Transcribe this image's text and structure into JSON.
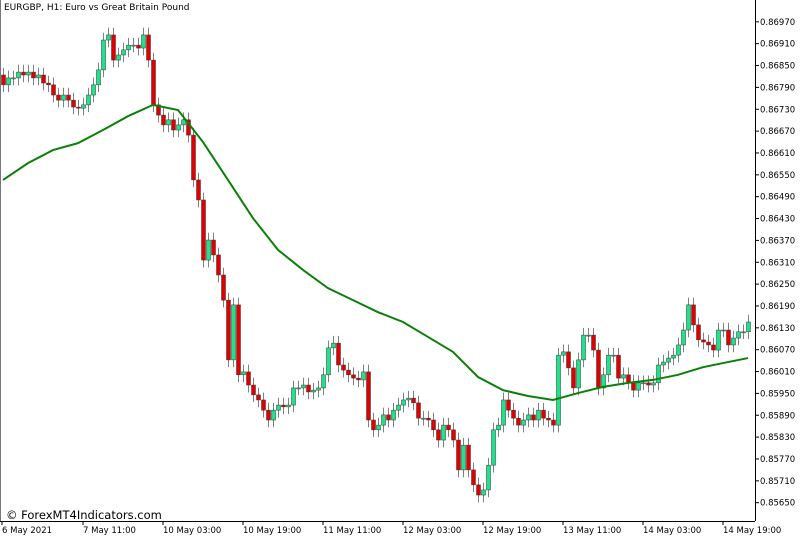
{
  "header": {
    "title": "EURGBP, H1:  Euro vs Great Britain Pound"
  },
  "watermark": "© ForexMT4Indicators.com",
  "colors": {
    "bull": "#1de38a",
    "bear": "#e00000",
    "wick": "#808080",
    "ma": "#0a800a",
    "axis": "#000000"
  },
  "chart_data": {
    "type": "candlestick",
    "symbol": "EURGBP",
    "timeframe": "H1",
    "ylim": [
      0.8562,
      0.86995
    ],
    "y_ticks": [
      0.8697,
      0.8691,
      0.8685,
      0.8679,
      0.8673,
      0.8667,
      0.8661,
      0.8655,
      0.8649,
      0.8643,
      0.8637,
      0.8631,
      0.8625,
      0.8619,
      0.8613,
      0.8607,
      0.8601,
      0.8595,
      0.8589,
      0.8583,
      0.8577,
      0.8571,
      0.8565
    ],
    "x_ticks": [
      {
        "bar": 0,
        "label": "6 May 2021"
      },
      {
        "bar": 16,
        "label": "7 May 11:00"
      },
      {
        "bar": 32,
        "label": "10 May 03:00"
      },
      {
        "bar": 48,
        "label": "10 May 19:00"
      },
      {
        "bar": 64,
        "label": "11 May 11:00"
      },
      {
        "bar": 80,
        "label": "12 May 03:00"
      },
      {
        "bar": 96,
        "label": "12 May 19:00"
      },
      {
        "bar": 112,
        "label": "13 May 11:00"
      },
      {
        "bar": 128,
        "label": "14 May 03:00"
      },
      {
        "bar": 144,
        "label": "14 May 19:00"
      }
    ],
    "candles_ohlc": [
      [
        0.86824,
        0.86844,
        0.86777,
        0.86797
      ],
      [
        0.86797,
        0.86836,
        0.86777,
        0.86816
      ],
      [
        0.86816,
        0.86836,
        0.86796,
        0.86816
      ],
      [
        0.86816,
        0.86852,
        0.86796,
        0.86832
      ],
      [
        0.86832,
        0.86852,
        0.86804,
        0.86824
      ],
      [
        0.86824,
        0.86852,
        0.86804,
        0.86832
      ],
      [
        0.86832,
        0.86852,
        0.86796,
        0.86816
      ],
      [
        0.86816,
        0.86844,
        0.86796,
        0.86824
      ],
      [
        0.86824,
        0.86844,
        0.86782,
        0.86802
      ],
      [
        0.86802,
        0.86822,
        0.86777,
        0.86797
      ],
      [
        0.86797,
        0.86817,
        0.86749,
        0.86769
      ],
      [
        0.86769,
        0.86789,
        0.86735,
        0.86755
      ],
      [
        0.86755,
        0.86789,
        0.86735,
        0.86769
      ],
      [
        0.86769,
        0.86789,
        0.86735,
        0.86755
      ],
      [
        0.86755,
        0.86775,
        0.86716,
        0.86736
      ],
      [
        0.86736,
        0.86756,
        0.86713,
        0.86733
      ],
      [
        0.86733,
        0.86762,
        0.86713,
        0.86742
      ],
      [
        0.86742,
        0.86789,
        0.86722,
        0.86769
      ],
      [
        0.86769,
        0.86817,
        0.86749,
        0.86797
      ],
      [
        0.86797,
        0.86858,
        0.86777,
        0.86838
      ],
      [
        0.86838,
        0.8694,
        0.86818,
        0.8692
      ],
      [
        0.8692,
        0.86954,
        0.869,
        0.86934
      ],
      [
        0.86934,
        0.86954,
        0.86845,
        0.86865
      ],
      [
        0.86865,
        0.86899,
        0.86845,
        0.86879
      ],
      [
        0.86879,
        0.86913,
        0.86859,
        0.86893
      ],
      [
        0.86893,
        0.86926,
        0.86873,
        0.86906
      ],
      [
        0.86906,
        0.86926,
        0.86886,
        0.86906
      ],
      [
        0.86906,
        0.86926,
        0.86878,
        0.86898
      ],
      [
        0.86898,
        0.86954,
        0.86878,
        0.86934
      ],
      [
        0.86934,
        0.86954,
        0.86845,
        0.86865
      ],
      [
        0.86865,
        0.86885,
        0.86722,
        0.86742
      ],
      [
        0.86742,
        0.86762,
        0.86694,
        0.86714
      ],
      [
        0.86714,
        0.86734,
        0.86667,
        0.86687
      ],
      [
        0.86687,
        0.86721,
        0.86667,
        0.86701
      ],
      [
        0.86701,
        0.86721,
        0.86653,
        0.86673
      ],
      [
        0.86673,
        0.86707,
        0.86653,
        0.86687
      ],
      [
        0.86687,
        0.86721,
        0.86667,
        0.86701
      ],
      [
        0.86701,
        0.86721,
        0.86639,
        0.86659
      ],
      [
        0.86659,
        0.86679,
        0.86516,
        0.86536
      ],
      [
        0.86536,
        0.86556,
        0.86461,
        0.86481
      ],
      [
        0.86481,
        0.86501,
        0.86296,
        0.86316
      ],
      [
        0.86316,
        0.86391,
        0.86296,
        0.86371
      ],
      [
        0.86371,
        0.86391,
        0.8631,
        0.8633
      ],
      [
        0.8633,
        0.8635,
        0.86255,
        0.86275
      ],
      [
        0.86275,
        0.86295,
        0.86186,
        0.86206
      ],
      [
        0.86206,
        0.86226,
        0.86022,
        0.86042
      ],
      [
        0.86042,
        0.86213,
        0.86022,
        0.86193
      ],
      [
        0.86193,
        0.86213,
        0.85981,
        0.86001
      ],
      [
        0.86001,
        0.86029,
        0.85981,
        0.86009
      ],
      [
        0.86009,
        0.86029,
        0.85953,
        0.85973
      ],
      [
        0.85973,
        0.85993,
        0.85926,
        0.85946
      ],
      [
        0.85946,
        0.85966,
        0.85912,
        0.85932
      ],
      [
        0.85932,
        0.85952,
        0.85884,
        0.85904
      ],
      [
        0.85904,
        0.85924,
        0.85857,
        0.85877
      ],
      [
        0.85877,
        0.85924,
        0.85857,
        0.85904
      ],
      [
        0.85904,
        0.85938,
        0.85884,
        0.85918
      ],
      [
        0.85918,
        0.85938,
        0.85893,
        0.85913
      ],
      [
        0.85913,
        0.85938,
        0.85893,
        0.85918
      ],
      [
        0.85918,
        0.85985,
        0.85898,
        0.85965
      ],
      [
        0.85965,
        0.85985,
        0.85945,
        0.85965
      ],
      [
        0.85965,
        0.85993,
        0.85945,
        0.85973
      ],
      [
        0.85973,
        0.85993,
        0.85934,
        0.85954
      ],
      [
        0.85954,
        0.85979,
        0.85934,
        0.85959
      ],
      [
        0.85959,
        0.85985,
        0.85939,
        0.85965
      ],
      [
        0.85965,
        0.86021,
        0.85945,
        0.86001
      ],
      [
        0.86001,
        0.86095,
        0.85981,
        0.86075
      ],
      [
        0.86075,
        0.86108,
        0.86055,
        0.86088
      ],
      [
        0.86088,
        0.86108,
        0.86008,
        0.86028
      ],
      [
        0.86028,
        0.86048,
        0.85994,
        0.86014
      ],
      [
        0.86014,
        0.86034,
        0.85981,
        0.86001
      ],
      [
        0.86001,
        0.86021,
        0.85972,
        0.85992
      ],
      [
        0.85992,
        0.86012,
        0.85967,
        0.85987
      ],
      [
        0.85987,
        0.86029,
        0.85967,
        0.86009
      ],
      [
        0.86009,
        0.86029,
        0.85857,
        0.85877
      ],
      [
        0.85877,
        0.85897,
        0.8583,
        0.8585
      ],
      [
        0.8585,
        0.85883,
        0.8583,
        0.85863
      ],
      [
        0.85863,
        0.85911,
        0.85843,
        0.85891
      ],
      [
        0.85891,
        0.85911,
        0.85857,
        0.85877
      ],
      [
        0.85877,
        0.85924,
        0.85857,
        0.85904
      ],
      [
        0.85904,
        0.85938,
        0.85884,
        0.85918
      ],
      [
        0.85918,
        0.85952,
        0.85898,
        0.85932
      ],
      [
        0.85932,
        0.85957,
        0.85912,
        0.85937
      ],
      [
        0.85937,
        0.85957,
        0.85904,
        0.85924
      ],
      [
        0.85924,
        0.85944,
        0.85862,
        0.85882
      ],
      [
        0.85882,
        0.85902,
        0.85862,
        0.85882
      ],
      [
        0.85882,
        0.85902,
        0.85857,
        0.85877
      ],
      [
        0.85877,
        0.85897,
        0.8583,
        0.8585
      ],
      [
        0.8585,
        0.8587,
        0.85802,
        0.85822
      ],
      [
        0.85822,
        0.85883,
        0.85802,
        0.85863
      ],
      [
        0.85863,
        0.85883,
        0.8583,
        0.8585
      ],
      [
        0.8585,
        0.8587,
        0.85802,
        0.85822
      ],
      [
        0.85822,
        0.85842,
        0.8572,
        0.8574
      ],
      [
        0.8574,
        0.85828,
        0.8572,
        0.85808
      ],
      [
        0.85808,
        0.85828,
        0.8572,
        0.8574
      ],
      [
        0.8574,
        0.8576,
        0.85679,
        0.85699
      ],
      [
        0.85699,
        0.85719,
        0.85651,
        0.85671
      ],
      [
        0.85671,
        0.85705,
        0.85651,
        0.85685
      ],
      [
        0.85685,
        0.85773,
        0.85665,
        0.85753
      ],
      [
        0.85753,
        0.8587,
        0.85733,
        0.8585
      ],
      [
        0.8585,
        0.85883,
        0.8583,
        0.85863
      ],
      [
        0.85863,
        0.85952,
        0.85843,
        0.85932
      ],
      [
        0.85932,
        0.85952,
        0.85884,
        0.85904
      ],
      [
        0.85904,
        0.85924,
        0.85862,
        0.85882
      ],
      [
        0.85882,
        0.85902,
        0.85843,
        0.85863
      ],
      [
        0.85863,
        0.85897,
        0.85843,
        0.85877
      ],
      [
        0.85877,
        0.85911,
        0.85857,
        0.85891
      ],
      [
        0.85891,
        0.85911,
        0.85857,
        0.85877
      ],
      [
        0.85877,
        0.85924,
        0.85857,
        0.85904
      ],
      [
        0.85904,
        0.85924,
        0.85862,
        0.85882
      ],
      [
        0.85882,
        0.85902,
        0.85857,
        0.85877
      ],
      [
        0.85877,
        0.85897,
        0.85843,
        0.85863
      ],
      [
        0.85863,
        0.86075,
        0.85843,
        0.86055
      ],
      [
        0.86055,
        0.86084,
        0.86035,
        0.86064
      ],
      [
        0.86064,
        0.86084,
        0.86,
        0.8602
      ],
      [
        0.8602,
        0.8604,
        0.85945,
        0.85965
      ],
      [
        0.85965,
        0.86062,
        0.85945,
        0.86042
      ],
      [
        0.86042,
        0.8613,
        0.86022,
        0.8611
      ],
      [
        0.8611,
        0.8613,
        0.8609,
        0.8611
      ],
      [
        0.8611,
        0.8613,
        0.86049,
        0.86069
      ],
      [
        0.86069,
        0.86089,
        0.85945,
        0.85965
      ],
      [
        0.85965,
        0.86021,
        0.85945,
        0.86001
      ],
      [
        0.86001,
        0.86075,
        0.85981,
        0.86055
      ],
      [
        0.86055,
        0.86075,
        0.86035,
        0.86055
      ],
      [
        0.86055,
        0.86075,
        0.85972,
        0.85992
      ],
      [
        0.85992,
        0.86021,
        0.85972,
        0.86001
      ],
      [
        0.86001,
        0.86021,
        0.85961,
        0.85981
      ],
      [
        0.85981,
        0.86001,
        0.85939,
        0.85959
      ],
      [
        0.85959,
        0.85999,
        0.85939,
        0.85979
      ],
      [
        0.85979,
        0.85999,
        0.85959,
        0.85979
      ],
      [
        0.85979,
        0.85999,
        0.85953,
        0.85973
      ],
      [
        0.85973,
        0.85999,
        0.85953,
        0.85979
      ],
      [
        0.85979,
        0.86048,
        0.85959,
        0.86028
      ],
      [
        0.86028,
        0.86056,
        0.86008,
        0.86036
      ],
      [
        0.86036,
        0.86067,
        0.86016,
        0.86047
      ],
      [
        0.86047,
        0.86075,
        0.86027,
        0.86055
      ],
      [
        0.86055,
        0.86103,
        0.86035,
        0.86083
      ],
      [
        0.86083,
        0.86144,
        0.86063,
        0.86124
      ],
      [
        0.86124,
        0.86213,
        0.86104,
        0.86193
      ],
      [
        0.86193,
        0.86213,
        0.86118,
        0.86138
      ],
      [
        0.86138,
        0.86158,
        0.86077,
        0.86097
      ],
      [
        0.86097,
        0.86117,
        0.86071,
        0.86091
      ],
      [
        0.86091,
        0.86111,
        0.86063,
        0.86083
      ],
      [
        0.86083,
        0.86103,
        0.86049,
        0.86069
      ],
      [
        0.86069,
        0.86144,
        0.86049,
        0.86124
      ],
      [
        0.86124,
        0.86144,
        0.86104,
        0.86124
      ],
      [
        0.86124,
        0.86144,
        0.86063,
        0.86083
      ],
      [
        0.86083,
        0.86122,
        0.86063,
        0.86102
      ],
      [
        0.86102,
        0.86139,
        0.86082,
        0.86119
      ],
      [
        0.86119,
        0.86139,
        0.86099,
        0.86119
      ],
      [
        0.86119,
        0.86166,
        0.86099,
        0.86146
      ]
    ],
    "moving_average": {
      "bars": [
        0,
        5,
        10,
        15,
        20,
        25,
        30,
        35,
        40,
        45,
        50,
        55,
        60,
        65,
        70,
        75,
        80,
        85,
        90,
        95,
        100,
        105,
        110,
        115,
        120,
        125,
        130,
        135,
        140,
        145,
        149
      ],
      "values": [
        0.86536,
        0.86582,
        0.86618,
        0.86637,
        0.86673,
        0.86711,
        0.86742,
        0.86728,
        0.8664,
        0.86536,
        0.86431,
        0.86344,
        0.86289,
        0.86239,
        0.86206,
        0.86173,
        0.86146,
        0.86105,
        0.86064,
        0.85995,
        0.85959,
        0.85943,
        0.85932,
        0.85951,
        0.85968,
        0.85979,
        0.85987,
        0.86001,
        0.86022,
        0.86036,
        0.86047
      ]
    },
    "grid": false,
    "legend": "none"
  }
}
